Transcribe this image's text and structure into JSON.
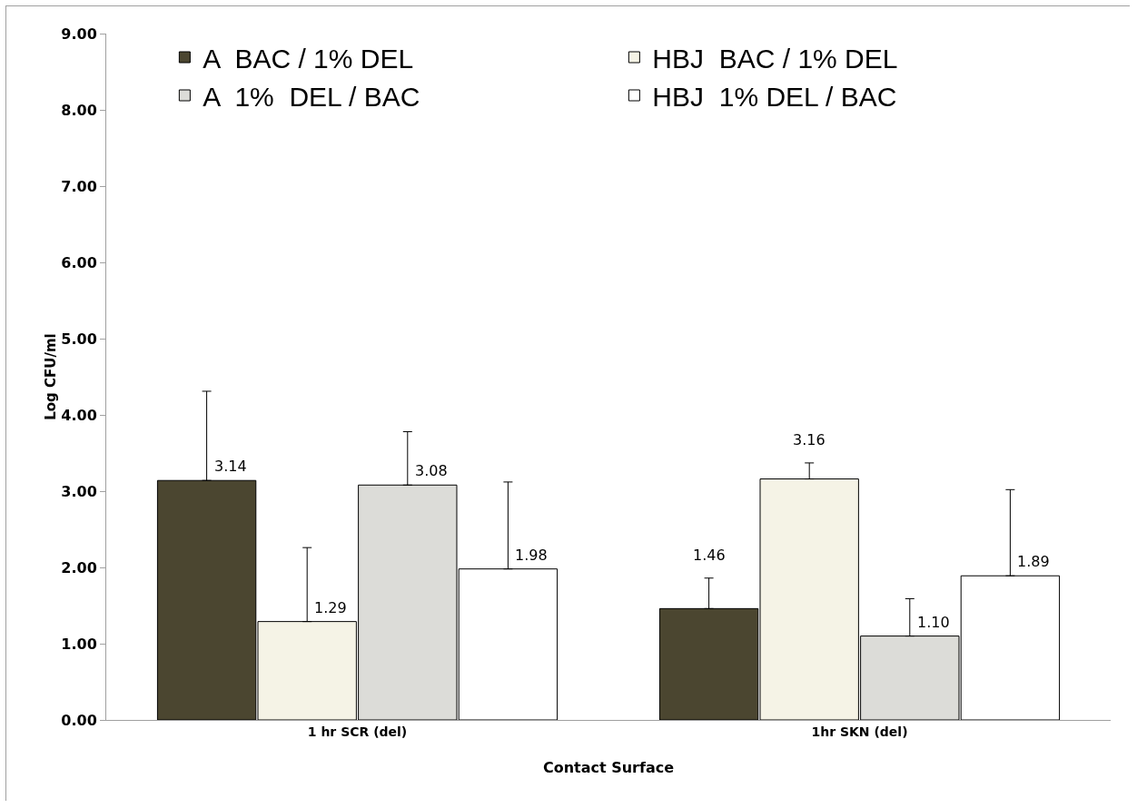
{
  "chart_data": {
    "type": "bar",
    "xlabel": "Contact Surface",
    "ylabel": "Log CFU/ml",
    "categories": [
      "1 hr SCR (del)",
      "1hr SKN (del)"
    ],
    "series": [
      {
        "name": "A  BAC / 1% DEL",
        "color": "#4b4630",
        "values": [
          3.14,
          1.46
        ],
        "value_labels": [
          "3.14",
          "1.46"
        ],
        "errors": [
          [
            3.14,
            4.31
          ],
          [
            1.46,
            1.86
          ]
        ]
      },
      {
        "name": "HBJ  BAC / 1% DEL",
        "color": "#f5f3e6",
        "values": [
          1.29,
          3.16
        ],
        "value_labels": [
          "1.29",
          "3.16"
        ],
        "errors": [
          [
            1.29,
            2.26
          ],
          [
            3.16,
            3.37
          ]
        ]
      },
      {
        "name": "A  1%  DEL / BAC",
        "color": "#dcdcd8",
        "values": [
          3.08,
          1.1
        ],
        "value_labels": [
          "3.08",
          "1.10"
        ],
        "errors": [
          [
            3.08,
            3.78
          ],
          [
            1.1,
            1.59
          ]
        ]
      },
      {
        "name": "HBJ  1% DEL / BAC",
        "color": "#ffffff",
        "values": [
          1.98,
          1.89
        ],
        "value_labels": [
          "1.98",
          "1.89"
        ],
        "errors": [
          [
            1.98,
            3.12
          ],
          [
            1.89,
            3.02
          ]
        ]
      }
    ],
    "ylim": [
      0,
      9
    ],
    "yticks": [
      {
        "value": 0,
        "label": "0.00"
      },
      {
        "value": 1,
        "label": "1.00"
      },
      {
        "value": 2,
        "label": "2.00"
      },
      {
        "value": 3,
        "label": "3.00"
      },
      {
        "value": 4,
        "label": "4.00"
      },
      {
        "value": 5,
        "label": "5.00"
      },
      {
        "value": 6,
        "label": "6.00"
      },
      {
        "value": 7,
        "label": "7.00"
      },
      {
        "value": 8,
        "label": "8.00"
      },
      {
        "value": 9,
        "label": "9.00"
      }
    ],
    "grid": false,
    "legend": "top"
  }
}
